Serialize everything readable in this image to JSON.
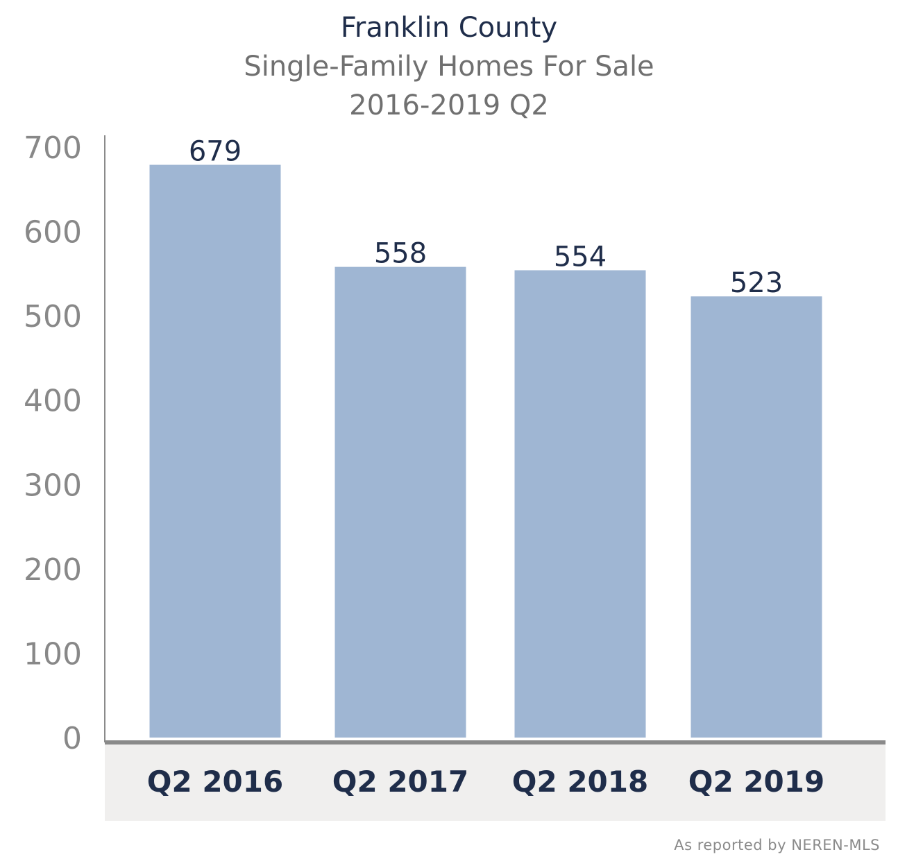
{
  "chart_data": {
    "type": "bar",
    "title": "Franklin County",
    "subtitle": "Single-Family Homes For Sale",
    "subtitle2": "2016-2019 Q2",
    "categories": [
      "Q2 2016",
      "Q2 2017",
      "Q2 2018",
      "Q2 2019"
    ],
    "values": [
      679,
      558,
      554,
      523
    ],
    "data_labels": [
      "679",
      "558",
      "554",
      "523"
    ],
    "xlabel": "",
    "ylabel": "",
    "ylim": [
      0,
      700
    ],
    "yticks": [
      0,
      100,
      200,
      300,
      400,
      500,
      600,
      700
    ],
    "grid": false,
    "colors": {
      "bar": "#9fb6d3",
      "label": "#1f2d4a",
      "tick": "#888888",
      "axis": "#8a8a8a",
      "category_band": "#f0efee"
    }
  },
  "footer": {
    "source": "As reported by NEREN-MLS"
  }
}
